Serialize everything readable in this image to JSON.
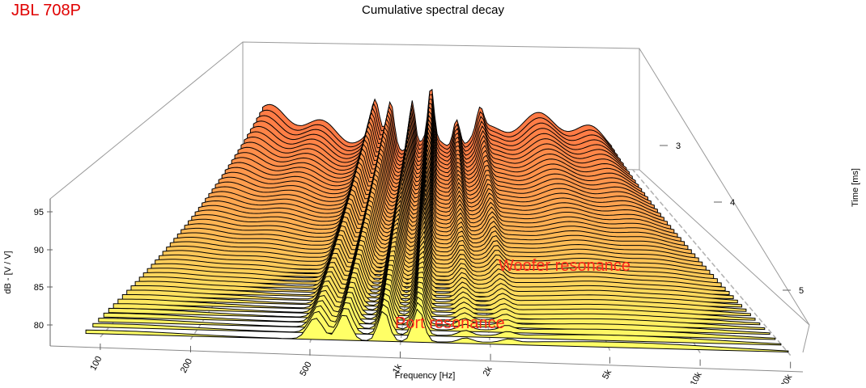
{
  "brand_label": "JBL 708P",
  "colors": {
    "front": "#ffff66",
    "back": "#ff7a45",
    "line": "#000000",
    "annotation": "#ff2a1a"
  },
  "chart_data": {
    "type": "waterfall",
    "title": "Cumulative spectral decay",
    "xlabel": "Frequency [Hz]",
    "ylabel": "dB - [V / V]",
    "zlabel": "Time [ms]",
    "x_ticks": [
      "100",
      "200",
      "500",
      "1k",
      "2k",
      "5k",
      "10k",
      "20k"
    ],
    "x_tick_values": [
      100,
      200,
      500,
      1000,
      2000,
      5000,
      10000,
      20000
    ],
    "y_ticks": [
      "80",
      "85",
      "90",
      "95"
    ],
    "y_tick_values": [
      80,
      85,
      90,
      95
    ],
    "z_ticks": [
      "3",
      "4",
      "5"
    ],
    "z_tick_values": [
      3,
      4,
      5
    ],
    "slice_count": 48,
    "annotations": [
      {
        "label": "Woofer resonance"
      },
      {
        "label": "Port resonance"
      }
    ]
  }
}
